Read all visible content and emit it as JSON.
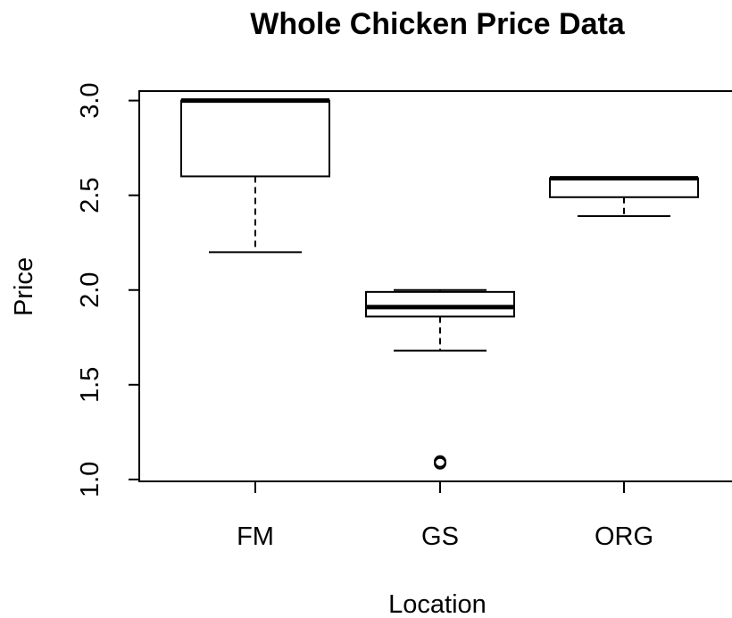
{
  "chart_data": {
    "type": "boxplot",
    "title": "Whole Chicken Price Data",
    "xlabel": "Location",
    "ylabel": "Price",
    "categories": [
      "FM",
      "GS",
      "ORG"
    ],
    "boxes": [
      {
        "category": "FM",
        "whisker_low": 2.2,
        "q1": 2.6,
        "median": 3.0,
        "q3": 3.0,
        "whisker_high": 3.0,
        "outliers": []
      },
      {
        "category": "GS",
        "whisker_low": 1.68,
        "q1": 1.86,
        "median": 1.91,
        "q3": 1.99,
        "whisker_high": 2.0,
        "outliers": [
          1.09,
          1.09
        ]
      },
      {
        "category": "ORG",
        "whisker_low": 2.39,
        "q1": 2.49,
        "median": 2.59,
        "q3": 2.59,
        "whisker_high": 2.59,
        "outliers": []
      }
    ],
    "ylim": [
      0.99,
      3.05
    ],
    "yticks": [
      1.0,
      1.5,
      2.0,
      2.5,
      3.0
    ],
    "ytick_labels": [
      "1.0",
      "1.5",
      "2.0",
      "2.5",
      "3.0"
    ],
    "grid": false,
    "legend": "none"
  }
}
